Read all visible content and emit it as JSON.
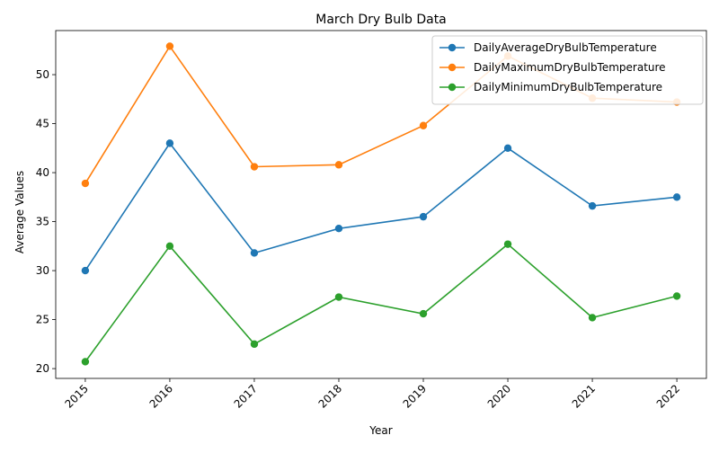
{
  "chart_data": {
    "type": "line",
    "title": "March Dry Bulb Data",
    "xlabel": "Year",
    "ylabel": "Average Values",
    "categories": [
      "2015",
      "2016",
      "2017",
      "2018",
      "2019",
      "2020",
      "2021",
      "2022"
    ],
    "ylim": [
      19,
      54.5
    ],
    "yticks": [
      20,
      25,
      30,
      35,
      40,
      45,
      50
    ],
    "grid": false,
    "legend_position": "top-right",
    "series": [
      {
        "name": "DailyAverageDryBulbTemperature",
        "color": "#1f77b4",
        "values": [
          30.0,
          43.0,
          31.8,
          34.3,
          35.5,
          42.5,
          36.6,
          37.5
        ]
      },
      {
        "name": "DailyMaximumDryBulbTemperature",
        "color": "#ff7f0e",
        "values": [
          38.9,
          52.9,
          40.6,
          40.8,
          44.8,
          51.9,
          47.6,
          47.2
        ]
      },
      {
        "name": "DailyMinimumDryBulbTemperature",
        "color": "#2ca02c",
        "values": [
          20.7,
          32.5,
          22.5,
          27.3,
          25.6,
          32.7,
          25.2,
          27.4
        ]
      }
    ]
  }
}
